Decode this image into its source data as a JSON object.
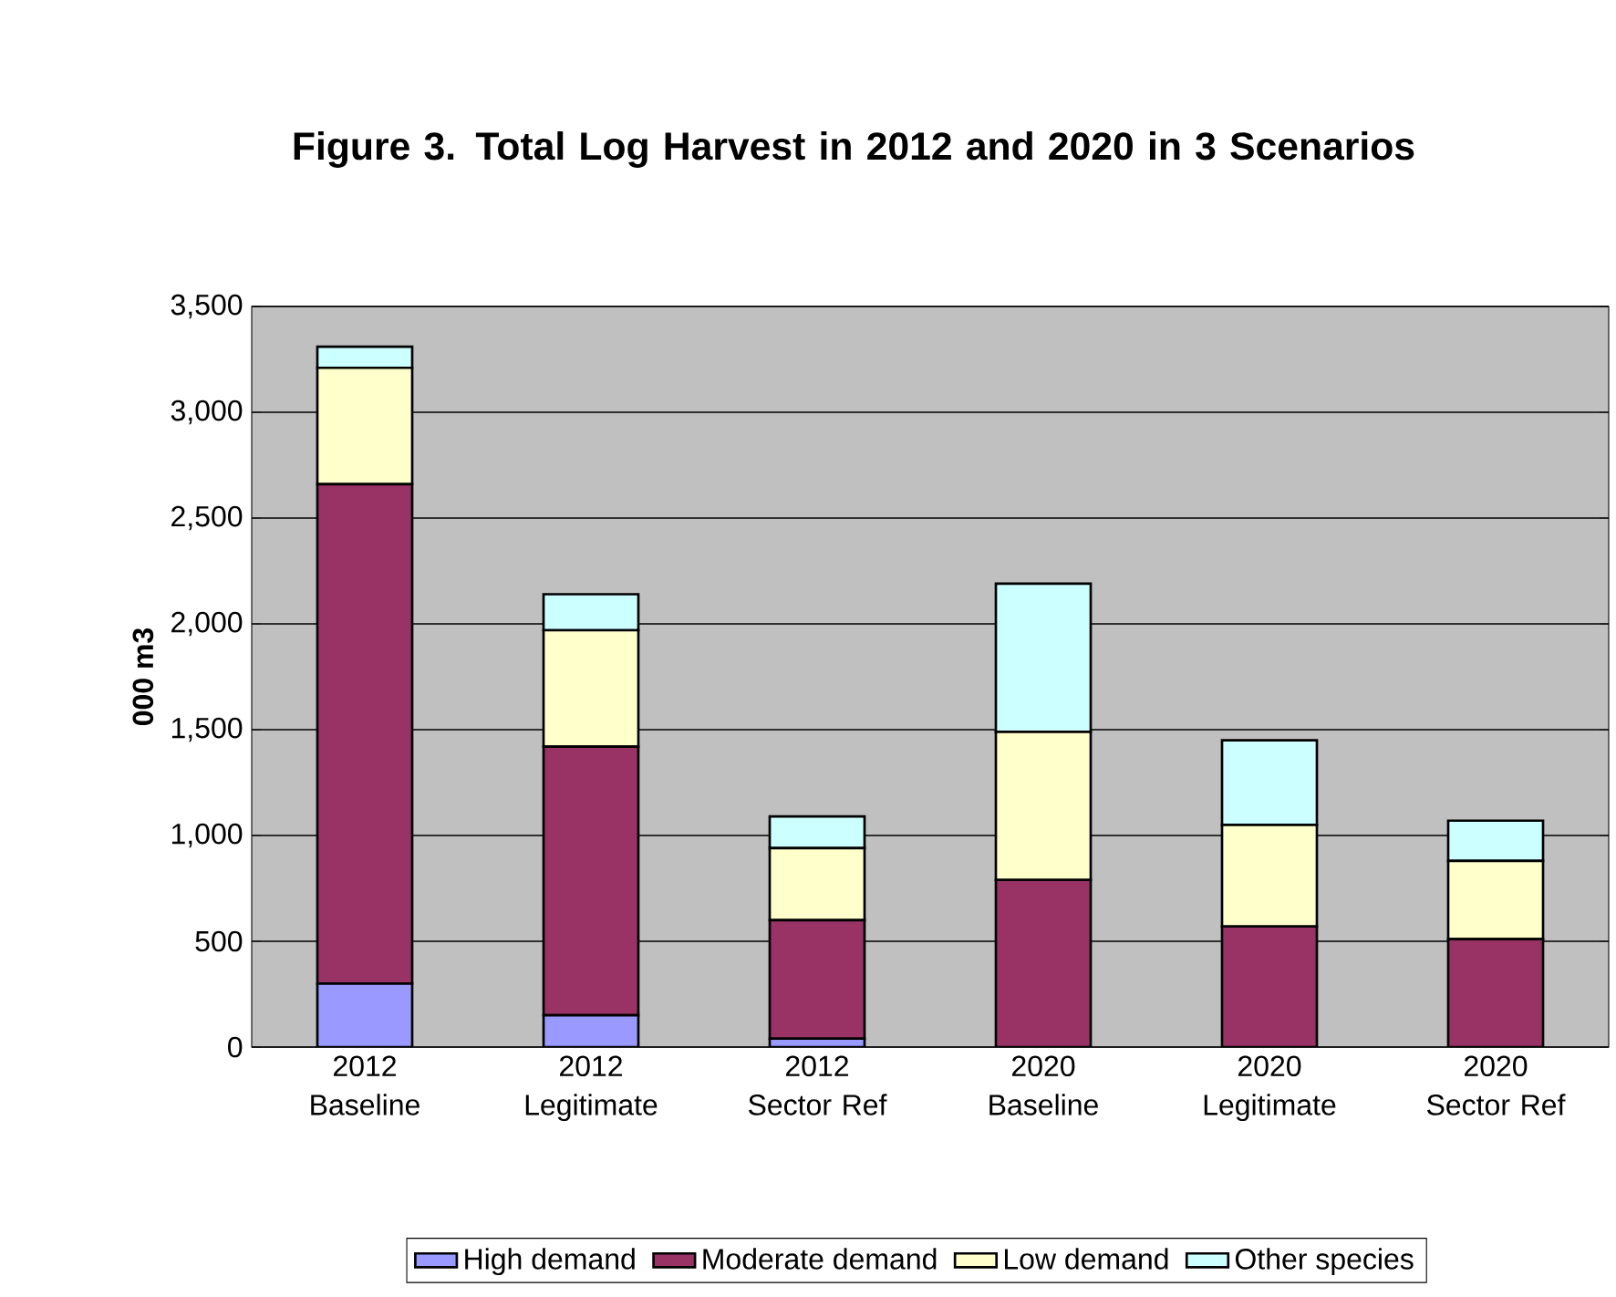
{
  "chart_data": {
    "type": "bar",
    "stacked": true,
    "title": "Figure 3. Total Log Harvest in 2012 and 2020 in 3 Scenarios",
    "ylabel": "000 m3",
    "categories": [
      "2012 Baseline",
      "2012 Legitimate",
      "2012 Sector Ref",
      "2020 Baseline",
      "2020 Legitimate",
      "2020 Sector Ref"
    ],
    "series": [
      {
        "name": "High demand",
        "color": "#9999ff",
        "values": [
          300,
          150,
          40,
          0,
          0,
          null
        ]
      },
      {
        "name": "Moderate demand",
        "color": "#993366",
        "values": [
          2360,
          1270,
          560,
          790,
          570,
          510
        ]
      },
      {
        "name": "Low demand",
        "color": "#ffffcc",
        "values": [
          550,
          550,
          340,
          700,
          480,
          370
        ]
      },
      {
        "name": "Other species",
        "color": "#ccffff",
        "values": [
          100,
          170,
          150,
          700,
          400,
          190
        ]
      }
    ],
    "ylim": [
      0,
      3500
    ],
    "yticks": [
      0,
      500,
      {
        "value": 1000,
        "label": "1,000"
      },
      {
        "value": 1500,
        "label": "1,500"
      },
      {
        "value": 2000,
        "label": "2,000"
      },
      {
        "value": 2500,
        "label": "2,500"
      },
      {
        "value": 3000,
        "label": "3,000"
      },
      {
        "value": 3500,
        "label": "3,500"
      }
    ],
    "grid": "y",
    "legend": "bottom"
  }
}
